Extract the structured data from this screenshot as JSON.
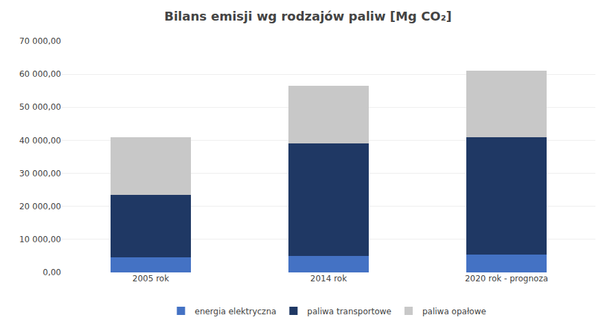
{
  "chart_data": {
    "type": "bar",
    "stacked": true,
    "title": "Bilans emisji wg rodzajów paliw [Mg CO₂]",
    "categories": [
      "2005 rok",
      "2014 rok",
      "2020 rok - prognoza"
    ],
    "series": [
      {
        "name": "energia elektryczna",
        "color": "#4472C4",
        "values": [
          4500,
          5000,
          5500
        ]
      },
      {
        "name": "paliwa transportowe",
        "color": "#1F3864",
        "values": [
          19000,
          34000,
          35500
        ]
      },
      {
        "name": "paliwa opałowe",
        "color": "#C8C8C8",
        "values": [
          17500,
          17500,
          20000
        ]
      }
    ],
    "ylim": [
      0,
      70000
    ],
    "yticks": [
      {
        "value": 0,
        "label": "0,00"
      },
      {
        "value": 10000,
        "label": "10 000,00"
      },
      {
        "value": 20000,
        "label": "20 000,00"
      },
      {
        "value": 30000,
        "label": "30 000,00"
      },
      {
        "value": 40000,
        "label": "40 000,00"
      },
      {
        "value": 50000,
        "label": "50 000,00"
      },
      {
        "value": 60000,
        "label": "60 000,00"
      },
      {
        "value": 70000,
        "label": "70 000,00"
      }
    ],
    "grid": true,
    "legend": "bottom"
  }
}
